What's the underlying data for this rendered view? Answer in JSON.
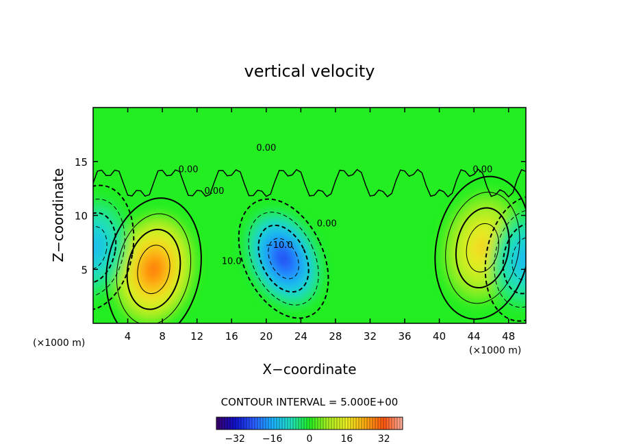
{
  "chart_data": {
    "type": "heatmap",
    "title": "vertical velocity",
    "xlabel": "X−coordinate",
    "ylabel": "Z−coordinate",
    "x_unit_left": "(×1000 m)",
    "x_unit_right": "(×1000 m)",
    "xlim": [
      0,
      50
    ],
    "ylim": [
      0,
      20
    ],
    "x_ticks": [
      4,
      8,
      12,
      16,
      20,
      24,
      28,
      32,
      36,
      40,
      44,
      48
    ],
    "y_ticks": [
      5,
      10,
      15
    ],
    "contour_interval_text": "CONTOUR INTERVAL = 5.000E+00",
    "contour_labels": [
      "0.00",
      "10.0",
      "−10.0",
      "0.00",
      "0.00",
      "0.00",
      "0.00"
    ],
    "colorbar": {
      "range": [
        -40,
        40
      ],
      "ticks": [
        -32,
        -16,
        0,
        16,
        32
      ],
      "tick_labels": [
        "−32",
        "−16",
        "0",
        "16",
        "32"
      ]
    },
    "features": [
      {
        "kind": "updraft",
        "x": 7,
        "z": 5,
        "value": 30
      },
      {
        "kind": "downdraft",
        "x": 22,
        "z": 6,
        "value": -28
      },
      {
        "kind": "updraft",
        "x": 45,
        "z": 7,
        "value": 20
      },
      {
        "kind": "downdraft",
        "x": 0,
        "z": 7,
        "value": -15
      },
      {
        "kind": "downdraft",
        "x": 50,
        "z": 6,
        "value": -15
      }
    ]
  }
}
